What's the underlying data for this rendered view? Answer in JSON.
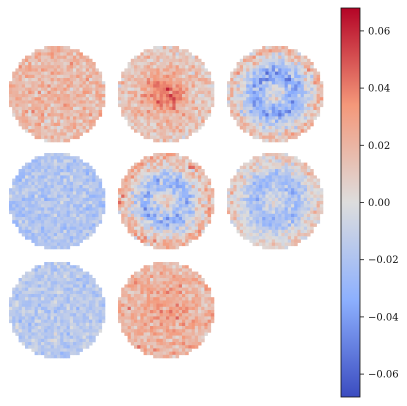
{
  "chart_data": {
    "type": "heatmap",
    "title": "",
    "xlabel": "",
    "ylabel": "",
    "colormap": "coolwarm",
    "colors": {
      "min": "#3b4cc0",
      "mid": "#dddddd",
      "max": "#b40426"
    },
    "colorbar": {
      "range": [
        -0.068,
        0.068
      ],
      "ticks": [
        0.06,
        0.04,
        0.02,
        0.0,
        -0.02,
        -0.04,
        -0.06
      ],
      "tick_labels": [
        "0.06",
        "0.04",
        "0.02",
        "0.00",
        "−0.02",
        "−0.04",
        "−0.06"
      ]
    },
    "grid_size": 30,
    "panels": [
      {
        "pattern": "uniform",
        "mean": 0.018,
        "amplitude": 0.0,
        "noise": 0.012
      },
      {
        "pattern": "center",
        "mean": 0.01,
        "amplitude": 0.035,
        "noise": 0.012
      },
      {
        "pattern": "ring",
        "mean": -0.015,
        "amplitude": 0.03,
        "noise": 0.015
      },
      {
        "pattern": "uniform",
        "mean": -0.018,
        "amplitude": 0.0,
        "noise": 0.01
      },
      {
        "pattern": "ring",
        "mean": -0.008,
        "amplitude": 0.028,
        "noise": 0.016
      },
      {
        "pattern": "ring",
        "mean": -0.012,
        "amplitude": 0.02,
        "noise": 0.012
      },
      {
        "pattern": "uniform",
        "mean": -0.015,
        "amplitude": 0.0,
        "noise": 0.01
      },
      {
        "pattern": "center",
        "mean": 0.02,
        "amplitude": 0.01,
        "noise": 0.012
      }
    ]
  }
}
